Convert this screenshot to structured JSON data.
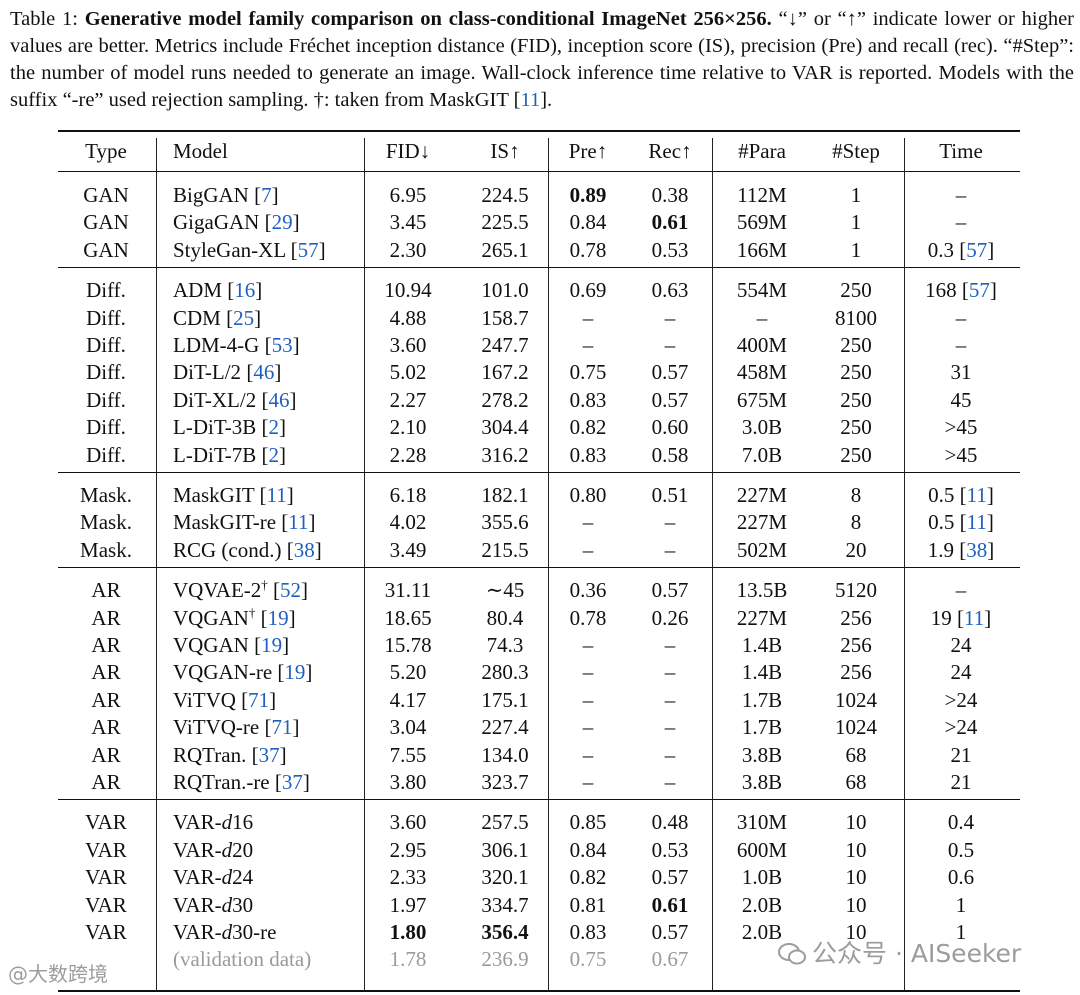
{
  "caption": {
    "label": "Table 1:",
    "title": "Generative model family comparison on class-conditional ImageNet 256×256.",
    "body_1": "“↓” or “↑” indicate lower or higher values are better. Metrics include Fréchet inception distance (FID), inception score (IS), precision (Pre) and recall (rec). “#Step”: the number of model runs needed to generate an image. Wall-clock inference time relative to VAR is reported. Models with the suffix “-re” used rejection sampling. †: taken from MaskGIT [",
    "ref": "11",
    "body_2": "]."
  },
  "header": {
    "type": "Type",
    "model": "Model",
    "fid": "FID↓",
    "is": "IS↑",
    "pre": "Pre↑",
    "rec": "Rec↑",
    "para": "#Para",
    "step": "#Step",
    "time": "Time"
  },
  "groups": [
    {
      "rows": [
        {
          "type": "GAN",
          "model": "BigGAN",
          "mref": "7",
          "fid": "6.95",
          "is": "224.5",
          "pre": "0.89",
          "rec": "0.38",
          "para": "112M",
          "step": "1",
          "time": "–",
          "bold": [
            "pre"
          ]
        },
        {
          "type": "GAN",
          "model": "GigaGAN",
          "mref": "29",
          "fid": "3.45",
          "is": "225.5",
          "pre": "0.84",
          "rec": "0.61",
          "para": "569M",
          "step": "1",
          "time": "–",
          "bold": [
            "rec"
          ]
        },
        {
          "type": "GAN",
          "model": "StyleGan-XL",
          "mref": "57",
          "fid": "2.30",
          "is": "265.1",
          "pre": "0.78",
          "rec": "0.53",
          "para": "166M",
          "step": "1",
          "time": "0.3",
          "tref": "57"
        }
      ]
    },
    {
      "rows": [
        {
          "type": "Diff.",
          "model": "ADM",
          "mref": "16",
          "fid": "10.94",
          "is": "101.0",
          "pre": "0.69",
          "rec": "0.63",
          "para": "554M",
          "step": "250",
          "time": "168",
          "tref": "57"
        },
        {
          "type": "Diff.",
          "model": "CDM",
          "mref": "25",
          "fid": "4.88",
          "is": "158.7",
          "pre": "–",
          "rec": "–",
          "para": "–",
          "step": "8100",
          "time": "–"
        },
        {
          "type": "Diff.",
          "model": "LDM-4-G",
          "mref": "53",
          "fid": "3.60",
          "is": "247.7",
          "pre": "–",
          "rec": "–",
          "para": "400M",
          "step": "250",
          "time": "–"
        },
        {
          "type": "Diff.",
          "model": "DiT-L/2",
          "mref": "46",
          "fid": "5.02",
          "is": "167.2",
          "pre": "0.75",
          "rec": "0.57",
          "para": "458M",
          "step": "250",
          "time": "31"
        },
        {
          "type": "Diff.",
          "model": "DiT-XL/2",
          "mref": "46",
          "fid": "2.27",
          "is": "278.2",
          "pre": "0.83",
          "rec": "0.57",
          "para": "675M",
          "step": "250",
          "time": "45"
        },
        {
          "type": "Diff.",
          "model": "L-DiT-3B",
          "mref": "2",
          "fid": "2.10",
          "is": "304.4",
          "pre": "0.82",
          "rec": "0.60",
          "para": "3.0B",
          "step": "250",
          "time": ">45"
        },
        {
          "type": "Diff.",
          "model": "L-DiT-7B",
          "mref": "2",
          "fid": "2.28",
          "is": "316.2",
          "pre": "0.83",
          "rec": "0.58",
          "para": "7.0B",
          "step": "250",
          "time": ">45"
        }
      ]
    },
    {
      "rows": [
        {
          "type": "Mask.",
          "model": "MaskGIT",
          "mref": "11",
          "fid": "6.18",
          "is": "182.1",
          "pre": "0.80",
          "rec": "0.51",
          "para": "227M",
          "step": "8",
          "time": "0.5",
          "tref": "11"
        },
        {
          "type": "Mask.",
          "model": "MaskGIT-re",
          "mref": "11",
          "fid": "4.02",
          "is": "355.6",
          "pre": "–",
          "rec": "–",
          "para": "227M",
          "step": "8",
          "time": "0.5",
          "tref": "11"
        },
        {
          "type": "Mask.",
          "model": "RCG (cond.)",
          "mref": "38",
          "fid": "3.49",
          "is": "215.5",
          "pre": "–",
          "rec": "–",
          "para": "502M",
          "step": "20",
          "time": "1.9",
          "tref": "38"
        }
      ]
    },
    {
      "rows": [
        {
          "type": "AR",
          "model": "VQVAE-2",
          "sup": "†",
          "mref": "52",
          "fid": "31.11",
          "is": "∼45",
          "pre": "0.36",
          "rec": "0.57",
          "para": "13.5B",
          "step": "5120",
          "time": "–"
        },
        {
          "type": "AR",
          "model": "VQGAN",
          "sup": "†",
          "mref": "19",
          "fid": "18.65",
          "is": "80.4",
          "pre": "0.78",
          "rec": "0.26",
          "para": "227M",
          "step": "256",
          "time": "19",
          "tref": "11"
        },
        {
          "type": "AR",
          "model": "VQGAN",
          "mref": "19",
          "fid": "15.78",
          "is": "74.3",
          "pre": "–",
          "rec": "–",
          "para": "1.4B",
          "step": "256",
          "time": "24"
        },
        {
          "type": "AR",
          "model": "VQGAN-re",
          "mref": "19",
          "fid": "5.20",
          "is": "280.3",
          "pre": "–",
          "rec": "–",
          "para": "1.4B",
          "step": "256",
          "time": "24"
        },
        {
          "type": "AR",
          "model": "ViTVQ",
          "mref": "71",
          "fid": "4.17",
          "is": "175.1",
          "pre": "–",
          "rec": "–",
          "para": "1.7B",
          "step": "1024",
          "time": ">24"
        },
        {
          "type": "AR",
          "model": "ViTVQ-re",
          "mref": "71",
          "fid": "3.04",
          "is": "227.4",
          "pre": "–",
          "rec": "–",
          "para": "1.7B",
          "step": "1024",
          "time": ">24"
        },
        {
          "type": "AR",
          "model": "RQTran.",
          "mref": "37",
          "fid": "7.55",
          "is": "134.0",
          "pre": "–",
          "rec": "–",
          "para": "3.8B",
          "step": "68",
          "time": "21"
        },
        {
          "type": "AR",
          "model": "RQTran.-re",
          "mref": "37",
          "fid": "3.80",
          "is": "323.7",
          "pre": "–",
          "rec": "–",
          "para": "3.8B",
          "step": "68",
          "time": "21"
        }
      ]
    },
    {
      "rows": [
        {
          "type": "VAR",
          "model": "VAR-",
          "italic": "d",
          "suffix": "16",
          "fid": "3.60",
          "is": "257.5",
          "pre": "0.85",
          "rec": "0.48",
          "para": "310M",
          "step": "10",
          "time": "0.4"
        },
        {
          "type": "VAR",
          "model": "VAR-",
          "italic": "d",
          "suffix": "20",
          "fid": "2.95",
          "is": "306.1",
          "pre": "0.84",
          "rec": "0.53",
          "para": "600M",
          "step": "10",
          "time": "0.5"
        },
        {
          "type": "VAR",
          "model": "VAR-",
          "italic": "d",
          "suffix": "24",
          "fid": "2.33",
          "is": "320.1",
          "pre": "0.82",
          "rec": "0.57",
          "para": "1.0B",
          "step": "10",
          "time": "0.6"
        },
        {
          "type": "VAR",
          "model": "VAR-",
          "italic": "d",
          "suffix": "30",
          "fid": "1.97",
          "is": "334.7",
          "pre": "0.81",
          "rec": "0.61",
          "para": "2.0B",
          "step": "10",
          "time": "1",
          "bold": [
            "rec"
          ]
        },
        {
          "type": "VAR",
          "model": "VAR-",
          "italic": "d",
          "suffix": "30-re",
          "fid": "1.80",
          "is": "356.4",
          "pre": "0.83",
          "rec": "0.57",
          "para": "2.0B",
          "step": "10",
          "time": "1",
          "bold": [
            "fid",
            "is"
          ]
        },
        {
          "type": "",
          "model": "(validation data)",
          "fid": "1.78",
          "is": "236.9",
          "pre": "0.75",
          "rec": "0.67",
          "para": "",
          "step": "",
          "time": "",
          "grey": true
        }
      ]
    }
  ],
  "watermarks": {
    "left": "@大数跨境",
    "right": "公众号 · AISeeker"
  }
}
